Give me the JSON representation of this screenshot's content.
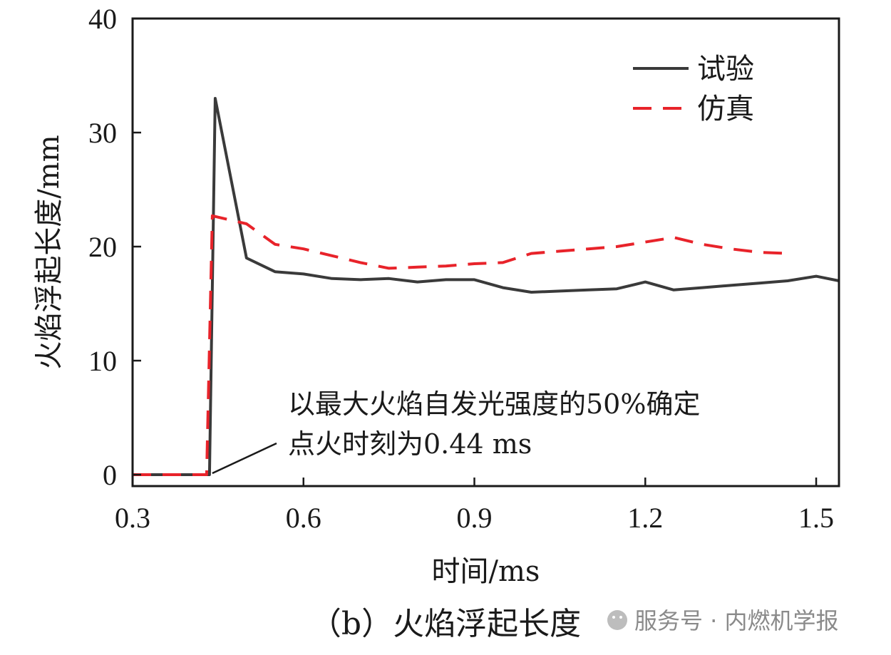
{
  "chart_data": {
    "type": "line",
    "xlabel": "时间/ms",
    "ylabel": "火焰浮起长度/mm",
    "xlim": [
      0.3,
      1.54
    ],
    "ylim": [
      -1,
      40
    ],
    "xticks": [
      "0.3",
      "0.6",
      "0.9",
      "1.2",
      "1.5"
    ],
    "yticks": [
      "0",
      "10",
      "20",
      "30",
      "40"
    ],
    "grid": false,
    "legend_position": "top-right",
    "series": [
      {
        "name": "试验",
        "style": "solid",
        "color": "#3a3a3a",
        "x": [
          0.3,
          0.435,
          0.445,
          0.5,
          0.55,
          0.6,
          0.65,
          0.7,
          0.75,
          0.8,
          0.85,
          0.9,
          0.95,
          1.0,
          1.05,
          1.1,
          1.15,
          1.2,
          1.25,
          1.3,
          1.35,
          1.4,
          1.45,
          1.5,
          1.54
        ],
        "y": [
          0,
          0,
          33,
          19,
          17.8,
          17.6,
          17.2,
          17.1,
          17.2,
          16.9,
          17.1,
          17.1,
          16.4,
          16.0,
          16.1,
          16.2,
          16.3,
          16.9,
          16.2,
          16.4,
          16.6,
          16.8,
          17.0,
          17.4,
          17.0
        ]
      },
      {
        "name": "仿真",
        "style": "dashed",
        "color": "#e8232a",
        "x": [
          0.3,
          0.43,
          0.44,
          0.5,
          0.55,
          0.6,
          0.65,
          0.7,
          0.75,
          0.8,
          0.85,
          0.9,
          0.95,
          1.0,
          1.05,
          1.1,
          1.15,
          1.2,
          1.25,
          1.3,
          1.35,
          1.4,
          1.45
        ],
        "y": [
          0,
          0,
          22.7,
          22,
          20.2,
          19.8,
          19.2,
          18.6,
          18.1,
          18.2,
          18.3,
          18.5,
          18.6,
          19.4,
          19.6,
          19.8,
          20.0,
          20.4,
          20.8,
          20.2,
          19.8,
          19.5,
          19.4
        ]
      }
    ],
    "annotation": {
      "line1": "以最大火焰自发光强度的50%确定",
      "line2": "点火时刻为0.44 ms",
      "x": 0.44,
      "y": 0
    },
    "caption": "（b）火焰浮起长度"
  },
  "watermark": "服务号 · 内燃机学报"
}
